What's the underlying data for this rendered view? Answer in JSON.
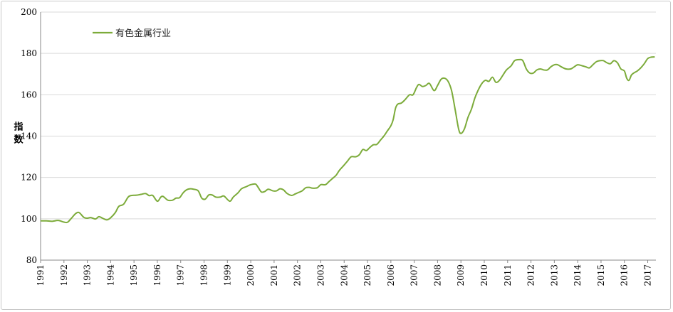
{
  "chart_data": {
    "type": "line",
    "ylabel": "指数",
    "ylim": [
      80,
      200
    ],
    "yticks": [
      80,
      100,
      120,
      140,
      160,
      180,
      200
    ],
    "xlim": [
      1991.0,
      2017.35
    ],
    "xticks": [
      "1991",
      "1992",
      "1993",
      "1994",
      "1995",
      "1996",
      "1997",
      "1998",
      "1999",
      "2000",
      "2001",
      "2002",
      "2003",
      "2004",
      "2005",
      "2006",
      "2007",
      "2008",
      "2009",
      "2010",
      "2011",
      "2012",
      "2013",
      "2014",
      "2015",
      "2016",
      "2017"
    ],
    "grid": "horizontal",
    "legend_position": "top-left",
    "series": [
      {
        "name": "有色金属行业",
        "color": "#7cab3a",
        "points": [
          [
            1991.0,
            99.0
          ],
          [
            1991.25,
            99.0
          ],
          [
            1991.5,
            98.8
          ],
          [
            1991.75,
            99.2
          ],
          [
            1992.0,
            98.4
          ],
          [
            1992.15,
            98.3
          ],
          [
            1992.3,
            100.0
          ],
          [
            1992.5,
            102.5
          ],
          [
            1992.65,
            103.0
          ],
          [
            1992.85,
            100.7
          ],
          [
            1993.0,
            100.3
          ],
          [
            1993.15,
            100.6
          ],
          [
            1993.35,
            99.9
          ],
          [
            1993.5,
            101.0
          ],
          [
            1993.7,
            100.0
          ],
          [
            1993.85,
            99.5
          ],
          [
            1994.0,
            100.5
          ],
          [
            1994.2,
            103.0
          ],
          [
            1994.35,
            106.0
          ],
          [
            1994.55,
            107.0
          ],
          [
            1994.75,
            110.5
          ],
          [
            1994.9,
            111.3
          ],
          [
            1995.1,
            111.4
          ],
          [
            1995.3,
            111.8
          ],
          [
            1995.5,
            112.2
          ],
          [
            1995.65,
            111.2
          ],
          [
            1995.8,
            111.3
          ],
          [
            1996.0,
            108.5
          ],
          [
            1996.15,
            110.5
          ],
          [
            1996.25,
            110.8
          ],
          [
            1996.45,
            109.0
          ],
          [
            1996.65,
            109.0
          ],
          [
            1996.8,
            110.0
          ],
          [
            1996.95,
            110.2
          ],
          [
            1997.1,
            112.5
          ],
          [
            1997.25,
            114.0
          ],
          [
            1997.4,
            114.5
          ],
          [
            1997.55,
            114.3
          ],
          [
            1997.75,
            113.5
          ],
          [
            1997.9,
            110.0
          ],
          [
            1998.05,
            109.5
          ],
          [
            1998.2,
            111.5
          ],
          [
            1998.35,
            111.5
          ],
          [
            1998.5,
            110.5
          ],
          [
            1998.7,
            110.5
          ],
          [
            1998.85,
            111.0
          ],
          [
            1999.1,
            108.5
          ],
          [
            1999.25,
            110.5
          ],
          [
            1999.45,
            112.5
          ],
          [
            1999.6,
            114.5
          ],
          [
            1999.8,
            115.5
          ],
          [
            2000.0,
            116.5
          ],
          [
            2000.2,
            116.8
          ],
          [
            2000.3,
            115.5
          ],
          [
            2000.45,
            113.0
          ],
          [
            2000.6,
            113.2
          ],
          [
            2000.75,
            114.3
          ],
          [
            2000.95,
            113.5
          ],
          [
            2001.1,
            113.5
          ],
          [
            2001.25,
            114.5
          ],
          [
            2001.4,
            114.0
          ],
          [
            2001.55,
            112.3
          ],
          [
            2001.75,
            111.3
          ],
          [
            2001.9,
            112.0
          ],
          [
            2002.0,
            112.5
          ],
          [
            2002.2,
            113.5
          ],
          [
            2002.35,
            115.0
          ],
          [
            2002.5,
            115.2
          ],
          [
            2002.65,
            114.8
          ],
          [
            2002.85,
            115.0
          ],
          [
            2003.0,
            116.5
          ],
          [
            2003.2,
            116.5
          ],
          [
            2003.35,
            118.0
          ],
          [
            2003.5,
            119.5
          ],
          [
            2003.65,
            121.0
          ],
          [
            2003.8,
            123.5
          ],
          [
            2004.0,
            126.0
          ],
          [
            2004.15,
            128.0
          ],
          [
            2004.3,
            130.0
          ],
          [
            2004.5,
            130.0
          ],
          [
            2004.65,
            131.0
          ],
          [
            2004.8,
            133.5
          ],
          [
            2004.95,
            133.0
          ],
          [
            2005.1,
            134.5
          ],
          [
            2005.25,
            135.8
          ],
          [
            2005.4,
            136.0
          ],
          [
            2005.55,
            138.0
          ],
          [
            2005.7,
            140.0
          ],
          [
            2005.85,
            142.5
          ],
          [
            2006.0,
            145.0
          ],
          [
            2006.1,
            148.0
          ],
          [
            2006.2,
            153.5
          ],
          [
            2006.3,
            155.5
          ],
          [
            2006.45,
            156.0
          ],
          [
            2006.6,
            157.5
          ],
          [
            2006.8,
            160.0
          ],
          [
            2006.95,
            160.0
          ],
          [
            2007.1,
            163.5
          ],
          [
            2007.2,
            165.0
          ],
          [
            2007.35,
            164.0
          ],
          [
            2007.5,
            164.5
          ],
          [
            2007.65,
            165.5
          ],
          [
            2007.85,
            162.0
          ],
          [
            2008.0,
            164.5
          ],
          [
            2008.15,
            167.5
          ],
          [
            2008.3,
            168.0
          ],
          [
            2008.45,
            166.5
          ],
          [
            2008.6,
            162.0
          ],
          [
            2008.75,
            153.0
          ],
          [
            2008.9,
            143.5
          ],
          [
            2009.0,
            141.3
          ],
          [
            2009.15,
            143.5
          ],
          [
            2009.3,
            149.0
          ],
          [
            2009.45,
            153.0
          ],
          [
            2009.6,
            158.5
          ],
          [
            2009.75,
            162.5
          ],
          [
            2009.9,
            165.5
          ],
          [
            2010.05,
            167.0
          ],
          [
            2010.2,
            166.5
          ],
          [
            2010.35,
            168.5
          ],
          [
            2010.5,
            166.0
          ],
          [
            2010.65,
            167.0
          ],
          [
            2010.8,
            169.5
          ],
          [
            2010.95,
            172.0
          ],
          [
            2011.15,
            174.0
          ],
          [
            2011.3,
            176.5
          ],
          [
            2011.5,
            177.0
          ],
          [
            2011.65,
            176.5
          ],
          [
            2011.8,
            172.5
          ],
          [
            2011.95,
            170.5
          ],
          [
            2012.1,
            170.5
          ],
          [
            2012.25,
            172.0
          ],
          [
            2012.4,
            172.5
          ],
          [
            2012.55,
            172.0
          ],
          [
            2012.7,
            172.0
          ],
          [
            2012.85,
            173.5
          ],
          [
            2013.0,
            174.5
          ],
          [
            2013.15,
            174.5
          ],
          [
            2013.3,
            173.5
          ],
          [
            2013.5,
            172.5
          ],
          [
            2013.7,
            172.5
          ],
          [
            2013.85,
            173.5
          ],
          [
            2014.0,
            174.5
          ],
          [
            2014.2,
            174.0
          ],
          [
            2014.35,
            173.5
          ],
          [
            2014.5,
            173.0
          ],
          [
            2014.65,
            174.5
          ],
          [
            2014.8,
            176.0
          ],
          [
            2014.95,
            176.5
          ],
          [
            2015.1,
            176.5
          ],
          [
            2015.25,
            175.5
          ],
          [
            2015.4,
            175.0
          ],
          [
            2015.55,
            176.5
          ],
          [
            2015.7,
            175.5
          ],
          [
            2015.85,
            172.5
          ],
          [
            2016.0,
            171.5
          ],
          [
            2016.1,
            168.0
          ],
          [
            2016.2,
            167.0
          ],
          [
            2016.3,
            169.5
          ],
          [
            2016.4,
            170.5
          ],
          [
            2016.55,
            171.5
          ],
          [
            2016.7,
            173.0
          ],
          [
            2016.85,
            175.0
          ],
          [
            2017.0,
            177.5
          ],
          [
            2017.15,
            178.2
          ],
          [
            2017.3,
            178.3
          ]
        ]
      }
    ]
  }
}
